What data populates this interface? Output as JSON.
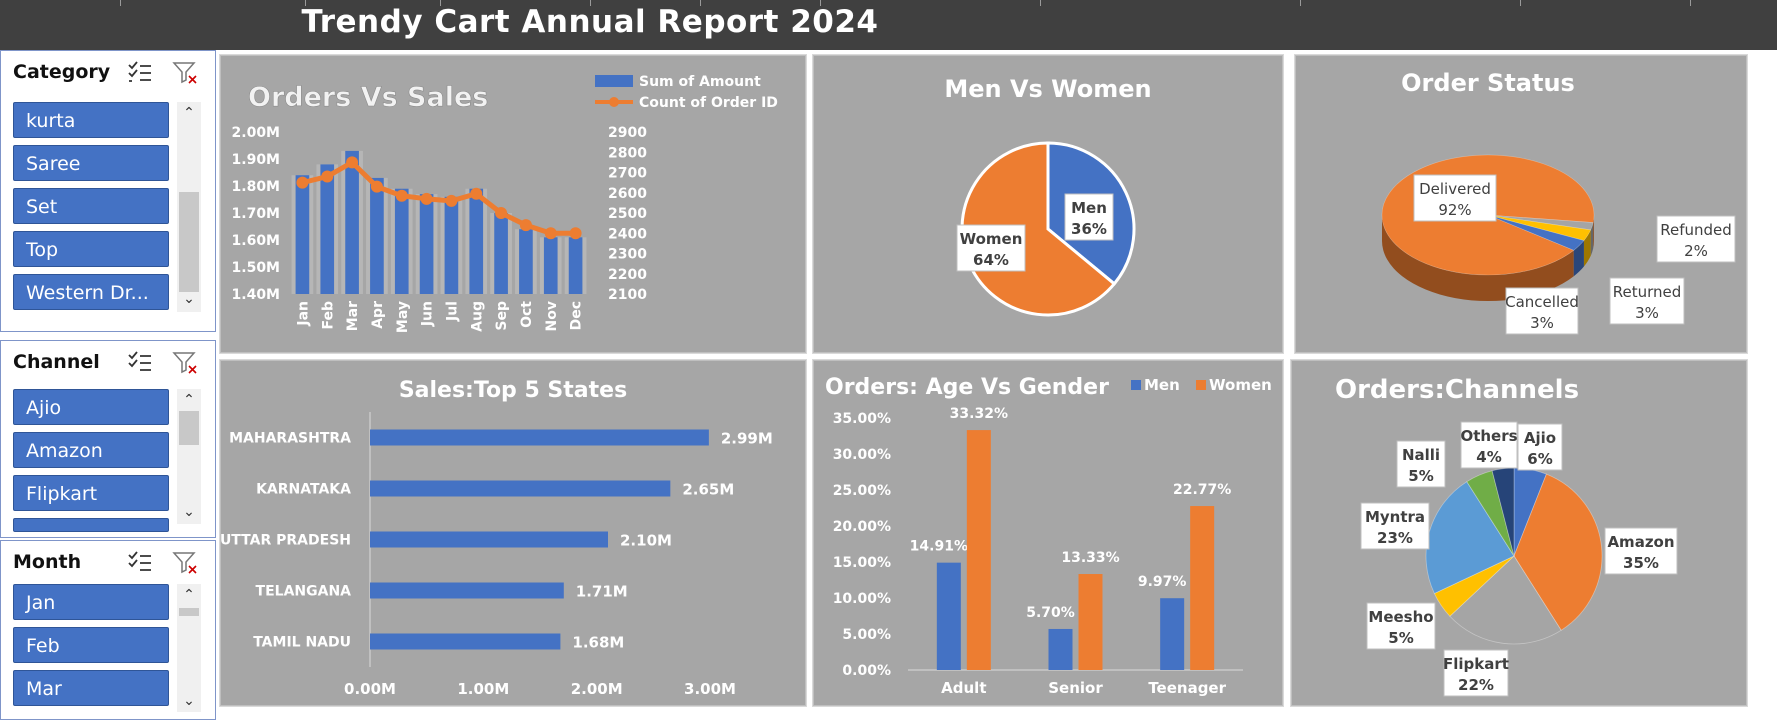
{
  "title": "Trendy Cart Annual Report 2024",
  "slicers": [
    {
      "name": "Category",
      "items": [
        "kurta",
        "Saree",
        "Set",
        "Top",
        "Western Dr..."
      ]
    },
    {
      "name": "Channel",
      "items": [
        "Ajio",
        "Amazon",
        "Flipkart"
      ]
    },
    {
      "name": "Month",
      "items": [
        "Jan",
        "Feb",
        "Mar"
      ]
    }
  ],
  "chart_data": [
    {
      "type": "combo",
      "title": "Orders Vs Sales",
      "categories": [
        "Jan",
        "Feb",
        "Mar",
        "Apr",
        "May",
        "Jun",
        "Jul",
        "Aug",
        "Sep",
        "Oct",
        "Nov",
        "Dec"
      ],
      "series": [
        {
          "name": "Sum of Amount",
          "kind": "bar",
          "axis": "left",
          "color": "#4472c4",
          "values": [
            1.84,
            1.88,
            1.93,
            1.83,
            1.79,
            1.77,
            1.76,
            1.79,
            1.7,
            1.64,
            1.61,
            1.61
          ]
        },
        {
          "name": "Count of Order ID",
          "kind": "line",
          "axis": "right",
          "color": "#ed7d31",
          "values": [
            2650,
            2680,
            2750,
            2630,
            2585,
            2570,
            2560,
            2595,
            2500,
            2440,
            2400,
            2400
          ]
        }
      ],
      "yleft": {
        "ticks": [
          "2.00M",
          "1.90M",
          "1.80M",
          "1.70M",
          "1.60M",
          "1.50M",
          "1.40M"
        ],
        "min": 1.4,
        "max": 2.0
      },
      "yright": {
        "ticks": [
          "2900",
          "2800",
          "2700",
          "2600",
          "2500",
          "2400",
          "2300",
          "2200",
          "2100"
        ],
        "min": 2100,
        "max": 2900
      }
    },
    {
      "type": "pie",
      "title": "Men Vs Women",
      "slices": [
        {
          "label": "Men",
          "value": 36,
          "text": "36%",
          "color": "#4472c4"
        },
        {
          "label": "Women",
          "value": 64,
          "text": "64%",
          "color": "#ed7d31"
        }
      ]
    },
    {
      "type": "pie",
      "title": "Order Status",
      "slices": [
        {
          "label": "Delivered",
          "value": 92,
          "text": "92%",
          "color": "#ed7d31"
        },
        {
          "label": "Refunded",
          "value": 2,
          "text": "2%",
          "color": "#a5a5a5"
        },
        {
          "label": "Returned",
          "value": 3,
          "text": "3%",
          "color": "#ffc000"
        },
        {
          "label": "Cancelled",
          "value": 3,
          "text": "3%",
          "color": "#4472c4"
        }
      ]
    },
    {
      "type": "bar",
      "orientation": "horizontal",
      "title": "Sales:Top 5 States",
      "categories": [
        "MAHARASHTRA",
        "KARNATAKA",
        "UTTAR PRADESH",
        "TELANGANA",
        "TAMIL NADU"
      ],
      "values": [
        2.99,
        2.65,
        2.1,
        1.71,
        1.68
      ],
      "value_labels": [
        "2.99M",
        "2.65M",
        "2.10M",
        "1.71M",
        "1.68M"
      ],
      "xticks": [
        "0.00M",
        "1.00M",
        "2.00M",
        "3.00M"
      ],
      "xlim": [
        0,
        3
      ],
      "color": "#4472c4"
    },
    {
      "type": "bar",
      "title": "Orders: Age Vs Gender",
      "categories": [
        "Adult",
        "Senior",
        "Teenager"
      ],
      "series": [
        {
          "name": "Men",
          "color": "#4472c4",
          "values": [
            14.91,
            5.7,
            9.97
          ],
          "labels": [
            "14.91%",
            "5.70%",
            "9.97%"
          ]
        },
        {
          "name": "Women",
          "color": "#ed7d31",
          "values": [
            33.32,
            13.33,
            22.77
          ],
          "labels": [
            "33.32%",
            "13.33%",
            "22.77%"
          ]
        }
      ],
      "yticks": [
        "35.00%",
        "30.00%",
        "25.00%",
        "20.00%",
        "15.00%",
        "10.00%",
        "5.00%",
        "0.00%"
      ],
      "ylim": [
        0,
        35
      ]
    },
    {
      "type": "pie",
      "title": "Orders:Channels",
      "slices": [
        {
          "label": "Ajio",
          "value": 6,
          "text": "6%",
          "color": "#4472c4"
        },
        {
          "label": "Amazon",
          "value": 35,
          "text": "35%",
          "color": "#ed7d31"
        },
        {
          "label": "Flipkart",
          "value": 22,
          "text": "22%",
          "color": "#a5a5a5"
        },
        {
          "label": "Meesho",
          "value": 5,
          "text": "5%",
          "color": "#ffc000"
        },
        {
          "label": "Myntra",
          "value": 23,
          "text": "23%",
          "color": "#5b9bd5"
        },
        {
          "label": "Nalli",
          "value": 5,
          "text": "5%",
          "color": "#70ad47"
        },
        {
          "label": "Others",
          "value": 4,
          "text": "4%",
          "color": "#264478"
        }
      ]
    }
  ]
}
